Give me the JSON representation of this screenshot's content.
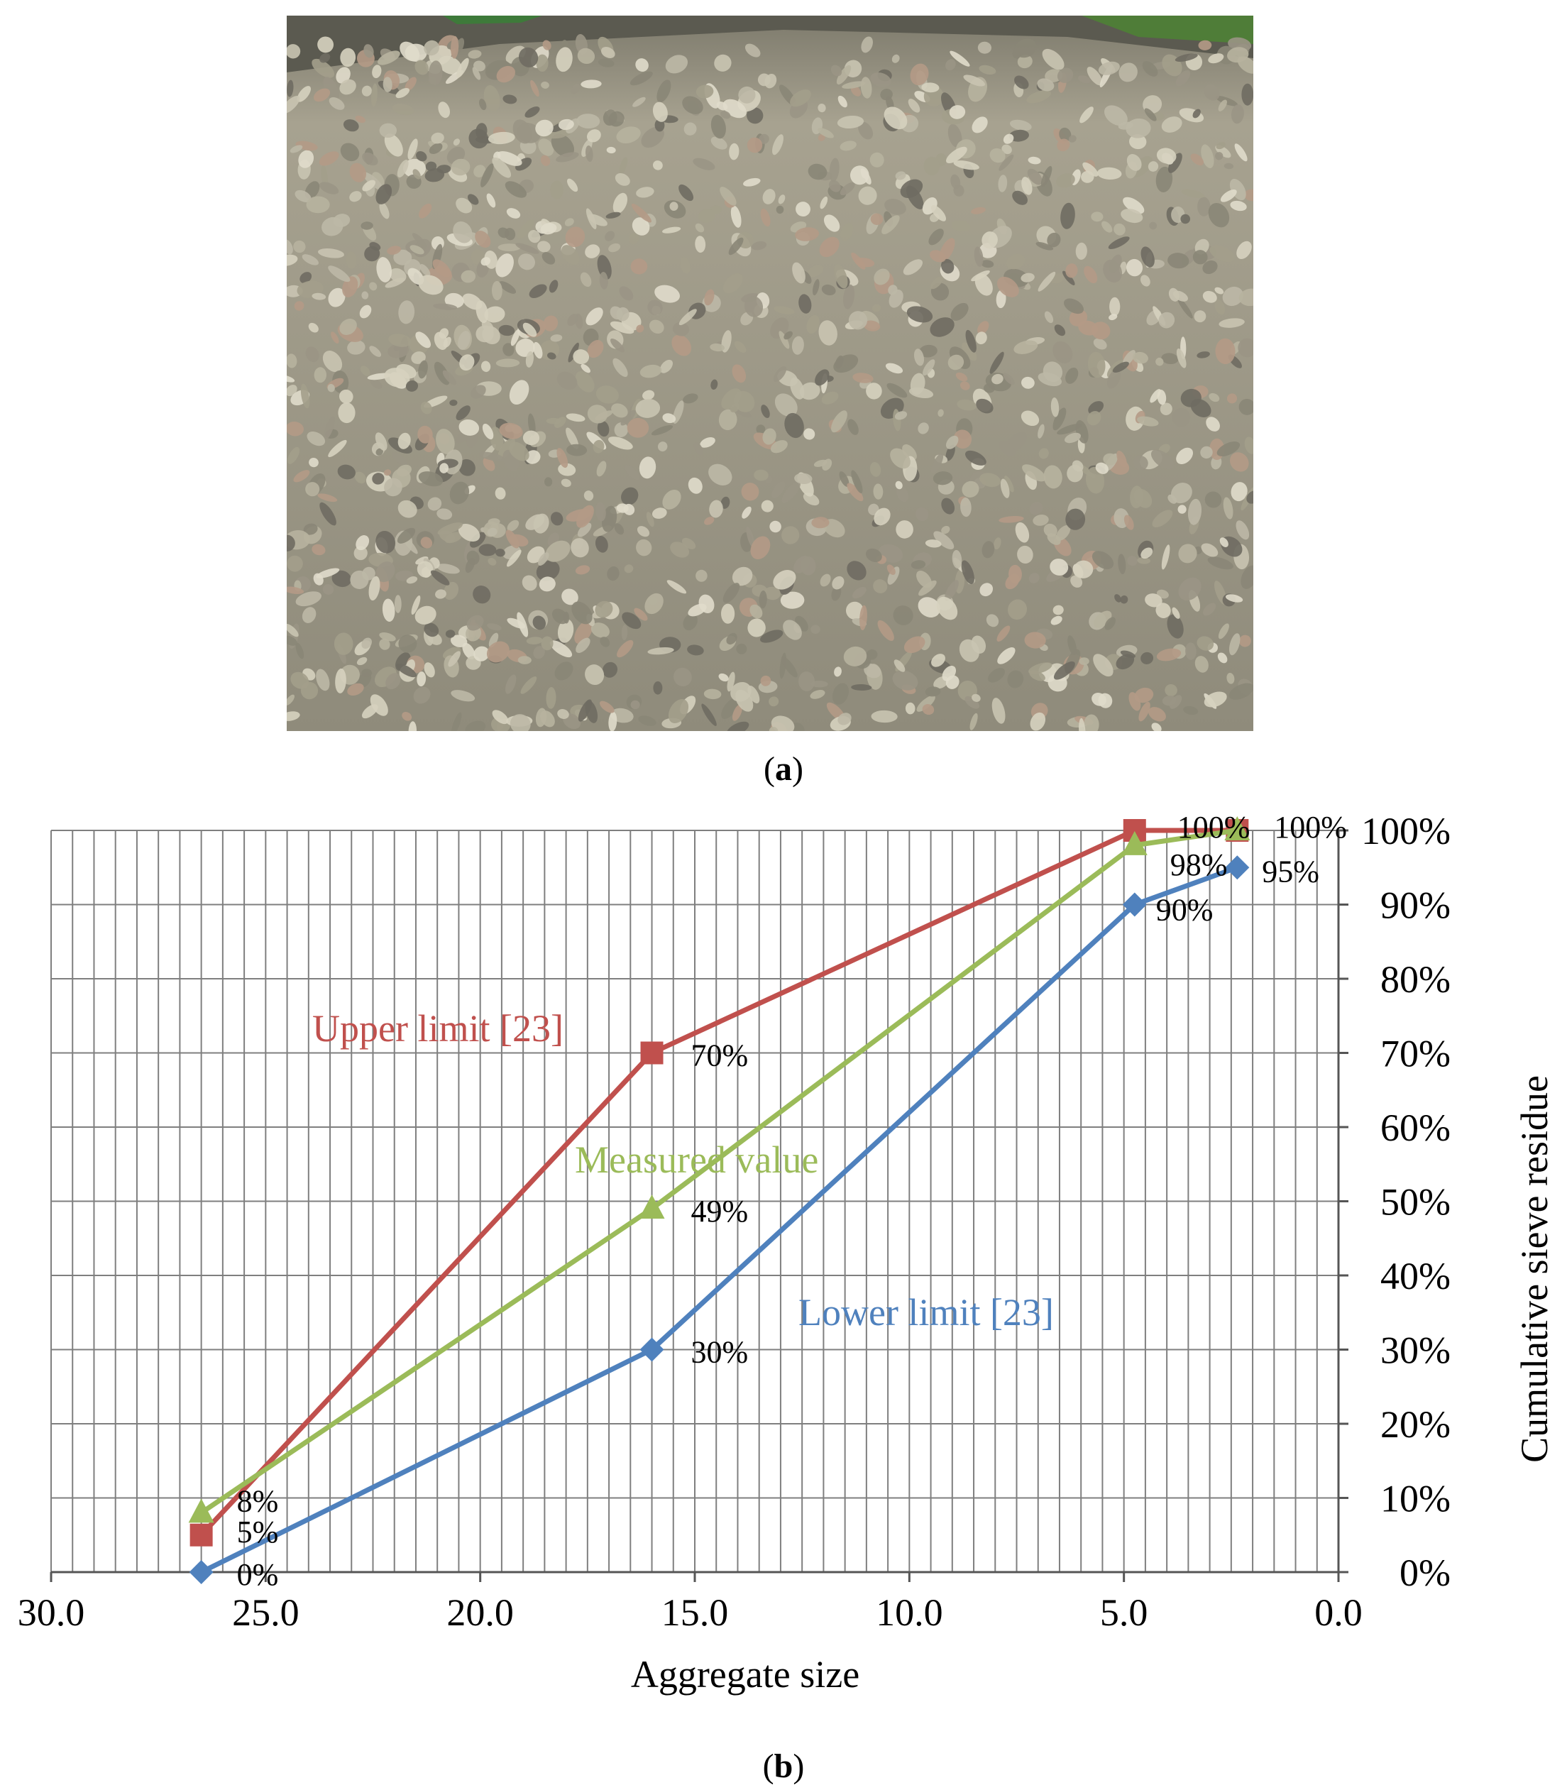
{
  "figure": {
    "panel_a": {
      "open": "(",
      "letter": "a",
      "close": ")",
      "image": "photo of recycled coarse aggregate pile"
    },
    "panel_b": {
      "open": "(",
      "letter": "b",
      "close": ")"
    }
  },
  "chart_data": {
    "type": "line",
    "xlabel": "Aggregate size",
    "ylabel": "Cumulative sieve residue",
    "xlim": [
      30.0,
      0.0
    ],
    "x_reversed": true,
    "ylim": [
      0,
      100
    ],
    "y_axis_side": "right",
    "x_ticks": [
      "30.0",
      "25.0",
      "20.0",
      "15.0",
      "10.0",
      "5.0",
      "0.0"
    ],
    "y_ticks": [
      "0%",
      "10%",
      "20%",
      "30%",
      "40%",
      "50%",
      "60%",
      "70%",
      "80%",
      "90%",
      "100%"
    ],
    "grid": true,
    "series": [
      {
        "name": "Upper limit [23]",
        "color": "#c0504d",
        "marker": "square",
        "x": [
          26.5,
          16.0,
          4.75,
          2.36
        ],
        "values": [
          5,
          70,
          100,
          100
        ],
        "labels": [
          "5%",
          "70%",
          "100%",
          "100%"
        ]
      },
      {
        "name": "Measured value",
        "color": "#9bbb59",
        "marker": "triangle",
        "x": [
          26.5,
          16.0,
          4.75,
          2.36
        ],
        "values": [
          8,
          49,
          98,
          100
        ],
        "labels": [
          "8%",
          "49%",
          "98%",
          ""
        ]
      },
      {
        "name": "Lower limit [23]",
        "color": "#4f81bd",
        "marker": "diamond",
        "x": [
          26.5,
          16.0,
          4.75,
          2.36
        ],
        "values": [
          0,
          30,
          90,
          95
        ],
        "labels": [
          "0%",
          "30%",
          "90%",
          "95%"
        ]
      }
    ]
  }
}
